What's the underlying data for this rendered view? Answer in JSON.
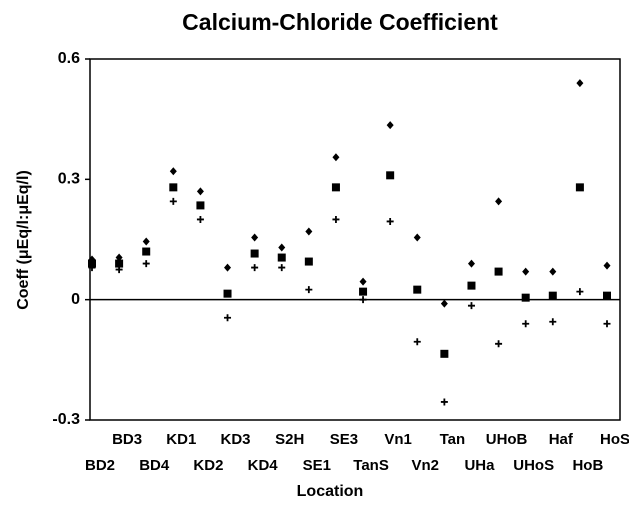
{
  "chart_data": {
    "type": "scatter",
    "title": "Calcium-Chloride Coefficient",
    "x_label": "Location",
    "y_label": "Coeff (μEq/l:μEq/l)",
    "categories": [
      "BD2",
      "BD3",
      "BD4",
      "KD1",
      "KD2",
      "KD3",
      "KD4",
      "S2H",
      "SE1",
      "SE3",
      "TanS",
      "Vn1",
      "Vn2",
      "Tan",
      "UHa",
      "UHoB",
      "UHoS",
      "Haf",
      "HoB",
      "HoS"
    ],
    "series": [
      {
        "marker": "diamond",
        "color": "#000000",
        "values": [
          0.1,
          0.105,
          0.145,
          0.32,
          0.27,
          0.08,
          0.155,
          0.13,
          0.17,
          0.355,
          0.045,
          0.435,
          0.155,
          -0.01,
          0.09,
          0.245,
          0.07,
          0.07,
          0.54,
          0.085
        ]
      },
      {
        "marker": "square",
        "color": "#000000",
        "values": [
          0.09,
          0.09,
          0.12,
          0.28,
          0.235,
          0.015,
          0.115,
          0.105,
          0.095,
          0.28,
          0.02,
          0.31,
          0.025,
          -0.135,
          0.035,
          0.07,
          0.005,
          0.01,
          0.28,
          0.01
        ]
      },
      {
        "marker": "plus",
        "color": "#000000",
        "values": [
          0.08,
          0.075,
          0.09,
          0.245,
          0.2,
          -0.045,
          0.08,
          0.08,
          0.025,
          0.2,
          0.0,
          0.195,
          -0.105,
          -0.255,
          -0.015,
          -0.11,
          -0.06,
          -0.055,
          0.02,
          -0.06
        ]
      }
    ],
    "ylim": [
      -0.3,
      0.6
    ],
    "yticks": [
      -0.3,
      0,
      0.3,
      0.6
    ],
    "zero_line": true
  }
}
